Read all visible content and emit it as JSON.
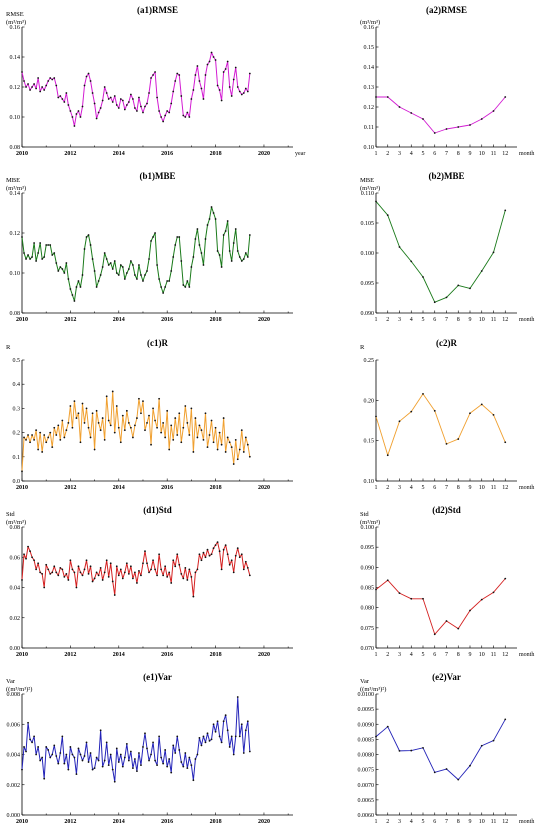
{
  "chart_data": [
    {
      "id": "a1",
      "type": "line",
      "title": "(a1)RMSE",
      "ylabel": "RMSE",
      "yunit": "(m³/m³)",
      "xlabel": "year",
      "xlim": [
        2010,
        2021.2
      ],
      "ylim": [
        0.08,
        0.16
      ],
      "yticks": [
        "0.08",
        "0.10",
        "0.12",
        "0.14",
        "0.16"
      ],
      "xticks": [
        "2010",
        "2012",
        "2014",
        "2016",
        "2018",
        "2020"
      ],
      "color": "#d21bd2",
      "x_start": 2010.0,
      "x_step": 0.08333,
      "values": [
        0.13,
        0.124,
        0.12,
        0.122,
        0.118,
        0.12,
        0.122,
        0.119,
        0.126,
        0.117,
        0.12,
        0.118,
        0.121,
        0.124,
        0.126,
        0.125,
        0.126,
        0.121,
        0.113,
        0.114,
        0.112,
        0.11,
        0.116,
        0.108,
        0.104,
        0.1,
        0.094,
        0.102,
        0.104,
        0.1,
        0.107,
        0.121,
        0.127,
        0.129,
        0.124,
        0.116,
        0.109,
        0.099,
        0.103,
        0.106,
        0.111,
        0.12,
        0.116,
        0.112,
        0.113,
        0.11,
        0.114,
        0.108,
        0.106,
        0.112,
        0.111,
        0.105,
        0.108,
        0.11,
        0.115,
        0.112,
        0.106,
        0.104,
        0.113,
        0.107,
        0.103,
        0.107,
        0.109,
        0.116,
        0.126,
        0.128,
        0.13,
        0.113,
        0.104,
        0.1,
        0.097,
        0.101,
        0.104,
        0.103,
        0.109,
        0.117,
        0.124,
        0.129,
        0.128,
        0.114,
        0.101,
        0.1,
        0.103,
        0.1,
        0.112,
        0.118,
        0.128,
        0.134,
        0.124,
        0.119,
        0.112,
        0.128,
        0.135,
        0.137,
        0.143,
        0.14,
        0.138,
        0.121,
        0.118,
        0.111,
        0.13,
        0.132,
        0.137,
        0.12,
        0.114,
        0.125,
        0.133,
        0.12,
        0.117,
        0.115,
        0.116,
        0.119,
        0.117,
        0.129
      ]
    },
    {
      "id": "a2",
      "type": "line",
      "title": "(a2)RMSE",
      "ylabel": "",
      "yunit": "(m³/m³)",
      "xlabel": "month",
      "xlim": [
        1,
        13
      ],
      "ylim": [
        0.1,
        0.16
      ],
      "yticks": [
        "0.10",
        "0.11",
        "0.12",
        "0.13",
        "0.14",
        "0.15",
        "0.16"
      ],
      "xticks": [
        "1",
        "2",
        "3",
        "4",
        "5",
        "6",
        "7",
        "8",
        "9",
        "10",
        "11",
        "12"
      ],
      "color": "#d21bd2",
      "x": [
        1,
        2,
        3,
        4,
        5,
        6,
        7,
        8,
        9,
        10,
        11,
        12
      ],
      "values": [
        0.125,
        0.125,
        0.12,
        0.117,
        0.114,
        0.107,
        0.109,
        0.11,
        0.111,
        0.114,
        0.118,
        0.125
      ]
    },
    {
      "id": "b1",
      "type": "line",
      "title": "(b1)MBE",
      "ylabel": "MBE",
      "yunit": "(m³/m³)",
      "xlabel": "",
      "xlim": [
        2010,
        2021.2
      ],
      "ylim": [
        0.08,
        0.14
      ],
      "yticks": [
        "0.08",
        "0.10",
        "0.12",
        "0.14"
      ],
      "xticks": [
        "2010",
        "2012",
        "2014",
        "2016",
        "2018",
        "2020"
      ],
      "color": "#1a7a1a",
      "x_start": 2010.0,
      "x_step": 0.08333,
      "values": [
        0.118,
        0.11,
        0.107,
        0.109,
        0.107,
        0.108,
        0.115,
        0.106,
        0.11,
        0.115,
        0.107,
        0.108,
        0.114,
        0.114,
        0.114,
        0.109,
        0.11,
        0.105,
        0.101,
        0.103,
        0.102,
        0.1,
        0.105,
        0.097,
        0.092,
        0.089,
        0.086,
        0.093,
        0.096,
        0.093,
        0.099,
        0.112,
        0.118,
        0.119,
        0.114,
        0.107,
        0.101,
        0.093,
        0.096,
        0.099,
        0.103,
        0.11,
        0.107,
        0.104,
        0.105,
        0.102,
        0.106,
        0.1,
        0.099,
        0.104,
        0.103,
        0.097,
        0.1,
        0.102,
        0.106,
        0.104,
        0.099,
        0.097,
        0.104,
        0.099,
        0.096,
        0.099,
        0.101,
        0.107,
        0.116,
        0.118,
        0.12,
        0.104,
        0.097,
        0.093,
        0.09,
        0.093,
        0.096,
        0.096,
        0.101,
        0.108,
        0.114,
        0.118,
        0.118,
        0.106,
        0.094,
        0.093,
        0.096,
        0.093,
        0.103,
        0.108,
        0.117,
        0.122,
        0.114,
        0.11,
        0.104,
        0.117,
        0.124,
        0.127,
        0.133,
        0.13,
        0.127,
        0.111,
        0.109,
        0.103,
        0.119,
        0.121,
        0.126,
        0.111,
        0.106,
        0.115,
        0.122,
        0.111,
        0.108,
        0.106,
        0.107,
        0.11,
        0.108,
        0.119
      ]
    },
    {
      "id": "b2",
      "type": "line",
      "title": "(b2)MBE",
      "ylabel": "MBE",
      "yunit": "(m³/m³)",
      "xlabel": "month",
      "xlim": [
        1,
        13
      ],
      "ylim": [
        0.09,
        0.11
      ],
      "yticks": [
        "0.090",
        "0.095",
        "0.100",
        "0.105",
        "0.110"
      ],
      "xticks": [
        "1",
        "2",
        "3",
        "4",
        "5",
        "6",
        "7",
        "8",
        "9",
        "10",
        "11",
        "12"
      ],
      "color": "#1a7a1a",
      "x": [
        1,
        2,
        3,
        4,
        5,
        6,
        7,
        8,
        9,
        10,
        11,
        12
      ],
      "values": [
        0.1086,
        0.1063,
        0.101,
        0.0986,
        0.096,
        0.0918,
        0.0926,
        0.0946,
        0.0941,
        0.097,
        0.1001,
        0.1071
      ]
    },
    {
      "id": "c1",
      "type": "line",
      "title": "(c1)R",
      "ylabel": "R",
      "yunit": "",
      "xlabel": "",
      "xlim": [
        2010,
        2021.2
      ],
      "ylim": [
        0.0,
        0.5
      ],
      "yticks": [
        "0.0",
        "0.1",
        "0.2",
        "0.3",
        "0.4",
        "0.5"
      ],
      "xticks": [
        "2010",
        "2012",
        "2014",
        "2016",
        "2018",
        "2020"
      ],
      "color": "#f0a030",
      "x_start": 2010.0,
      "x_step": 0.08333,
      "values": [
        0.04,
        0.18,
        0.17,
        0.19,
        0.16,
        0.19,
        0.17,
        0.21,
        0.13,
        0.2,
        0.12,
        0.19,
        0.16,
        0.18,
        0.2,
        0.14,
        0.22,
        0.19,
        0.23,
        0.17,
        0.25,
        0.18,
        0.21,
        0.24,
        0.31,
        0.22,
        0.33,
        0.26,
        0.28,
        0.16,
        0.32,
        0.24,
        0.3,
        0.22,
        0.18,
        0.28,
        0.13,
        0.29,
        0.24,
        0.21,
        0.26,
        0.17,
        0.35,
        0.25,
        0.23,
        0.37,
        0.2,
        0.31,
        0.22,
        0.16,
        0.27,
        0.21,
        0.29,
        0.24,
        0.22,
        0.18,
        0.23,
        0.26,
        0.34,
        0.28,
        0.33,
        0.21,
        0.24,
        0.27,
        0.15,
        0.3,
        0.25,
        0.22,
        0.34,
        0.2,
        0.24,
        0.18,
        0.29,
        0.13,
        0.23,
        0.17,
        0.26,
        0.19,
        0.28,
        0.16,
        0.22,
        0.31,
        0.24,
        0.19,
        0.3,
        0.12,
        0.26,
        0.18,
        0.23,
        0.21,
        0.17,
        0.28,
        0.14,
        0.19,
        0.25,
        0.16,
        0.22,
        0.13,
        0.2,
        0.15,
        0.26,
        0.12,
        0.18,
        0.16,
        0.14,
        0.07,
        0.17,
        0.09,
        0.13,
        0.21,
        0.12,
        0.18,
        0.15,
        0.1
      ]
    },
    {
      "id": "c2",
      "type": "line",
      "title": "(c2)R",
      "ylabel": "R",
      "yunit": "",
      "xlabel": "month",
      "xlim": [
        1,
        13
      ],
      "ylim": [
        0.1,
        0.25
      ],
      "yticks": [
        "0.10",
        "0.15",
        "0.20",
        "0.25"
      ],
      "xticks": [
        "1",
        "2",
        "3",
        "4",
        "5",
        "6",
        "7",
        "8",
        "9",
        "10",
        "11",
        "12"
      ],
      "color": "#f0a030",
      "x": [
        1,
        2,
        3,
        4,
        5,
        6,
        7,
        8,
        9,
        10,
        11,
        12
      ],
      "values": [
        0.18,
        0.132,
        0.174,
        0.186,
        0.208,
        0.187,
        0.146,
        0.152,
        0.184,
        0.195,
        0.182,
        0.148
      ]
    },
    {
      "id": "d1",
      "type": "line",
      "title": "(d1)Std",
      "ylabel": "Std",
      "yunit": "(m³/m³)",
      "xlabel": "",
      "xlim": [
        2010,
        2021.2
      ],
      "ylim": [
        0.0,
        0.08
      ],
      "yticks": [
        "0.00",
        "0.02",
        "0.04",
        "0.06",
        "0.08"
      ],
      "xticks": [
        "2010",
        "2012",
        "2014",
        "2016",
        "2018",
        "2020"
      ],
      "color": "#d42020",
      "x_start": 2010.0,
      "x_step": 0.08333,
      "values": [
        0.045,
        0.062,
        0.059,
        0.067,
        0.064,
        0.06,
        0.058,
        0.052,
        0.056,
        0.05,
        0.049,
        0.04,
        0.055,
        0.052,
        0.049,
        0.05,
        0.054,
        0.05,
        0.048,
        0.053,
        0.052,
        0.047,
        0.049,
        0.045,
        0.058,
        0.052,
        0.05,
        0.04,
        0.054,
        0.05,
        0.048,
        0.052,
        0.058,
        0.049,
        0.054,
        0.044,
        0.046,
        0.05,
        0.048,
        0.053,
        0.045,
        0.05,
        0.058,
        0.047,
        0.056,
        0.044,
        0.035,
        0.054,
        0.048,
        0.052,
        0.046,
        0.05,
        0.056,
        0.049,
        0.054,
        0.046,
        0.05,
        0.043,
        0.051,
        0.048,
        0.056,
        0.064,
        0.056,
        0.05,
        0.052,
        0.058,
        0.052,
        0.048,
        0.062,
        0.052,
        0.048,
        0.054,
        0.047,
        0.05,
        0.043,
        0.058,
        0.054,
        0.062,
        0.055,
        0.049,
        0.046,
        0.053,
        0.045,
        0.052,
        0.047,
        0.034,
        0.05,
        0.052,
        0.062,
        0.058,
        0.063,
        0.06,
        0.065,
        0.061,
        0.062,
        0.066,
        0.068,
        0.07,
        0.064,
        0.052,
        0.065,
        0.068,
        0.062,
        0.055,
        0.058,
        0.05,
        0.061,
        0.066,
        0.06,
        0.062,
        0.052,
        0.057,
        0.053,
        0.048
      ]
    },
    {
      "id": "d2",
      "type": "line",
      "title": "(d2)Std",
      "ylabel": "Std",
      "yunit": "(m³/m³)",
      "xlabel": "month",
      "xlim": [
        1,
        13
      ],
      "ylim": [
        0.07,
        0.1
      ],
      "yticks": [
        "0.070",
        "0.075",
        "0.080",
        "0.085",
        "0.090",
        "0.095",
        "0.100"
      ],
      "xticks": [
        "1",
        "2",
        "3",
        "4",
        "5",
        "6",
        "7",
        "8",
        "9",
        "10",
        "11",
        "12"
      ],
      "color": "#d42020",
      "x": [
        1,
        2,
        3,
        4,
        5,
        6,
        7,
        8,
        9,
        10,
        11,
        12
      ],
      "values": [
        0.0845,
        0.0868,
        0.0836,
        0.0822,
        0.0822,
        0.0734,
        0.0767,
        0.0748,
        0.0793,
        0.082,
        0.0838,
        0.0872
      ]
    },
    {
      "id": "e1",
      "type": "line",
      "title": "(e1)Var",
      "ylabel": "Var",
      "yunit": "((m³/m³)²)",
      "xlabel": "",
      "xlim": [
        2010,
        2021.2
      ],
      "ylim": [
        0.0,
        0.008
      ],
      "yticks": [
        "0.000",
        "0.002",
        "0.004",
        "0.006",
        "0.008"
      ],
      "xticks": [
        "2010",
        "2012",
        "2014",
        "2016",
        "2018",
        "2020"
      ],
      "color": "#2323b8",
      "x_start": 2010.0,
      "x_step": 0.08333,
      "values": [
        0.003,
        0.0045,
        0.0042,
        0.0061,
        0.005,
        0.0048,
        0.0052,
        0.004,
        0.0045,
        0.0036,
        0.0038,
        0.0024,
        0.0045,
        0.0043,
        0.0038,
        0.004,
        0.0046,
        0.0039,
        0.0034,
        0.0041,
        0.0052,
        0.0034,
        0.004,
        0.003,
        0.0045,
        0.004,
        0.0038,
        0.0027,
        0.0044,
        0.004,
        0.0036,
        0.0039,
        0.0048,
        0.0035,
        0.0041,
        0.003,
        0.0031,
        0.0038,
        0.0036,
        0.0056,
        0.0032,
        0.0036,
        0.0048,
        0.0033,
        0.004,
        0.003,
        0.0022,
        0.0044,
        0.0035,
        0.004,
        0.0032,
        0.0038,
        0.0047,
        0.0036,
        0.0042,
        0.0031,
        0.0037,
        0.0029,
        0.0041,
        0.0033,
        0.0045,
        0.0054,
        0.0044,
        0.0036,
        0.004,
        0.0048,
        0.0036,
        0.0033,
        0.0052,
        0.0038,
        0.0034,
        0.0043,
        0.0032,
        0.0037,
        0.0028,
        0.0046,
        0.0041,
        0.0052,
        0.0043,
        0.0035,
        0.0032,
        0.0041,
        0.0031,
        0.0038,
        0.0033,
        0.0023,
        0.0037,
        0.004,
        0.0051,
        0.0046,
        0.0052,
        0.0048,
        0.0054,
        0.0049,
        0.005,
        0.006,
        0.0055,
        0.0062,
        0.0052,
        0.0048,
        0.0062,
        0.0066,
        0.0056,
        0.0045,
        0.0052,
        0.004,
        0.0052,
        0.0078,
        0.0052,
        0.006,
        0.0041,
        0.0056,
        0.0062,
        0.0042
      ]
    },
    {
      "id": "e2",
      "type": "line",
      "title": "(e2)Var",
      "ylabel": "Var",
      "yunit": "((m³/m³)²)",
      "xlabel": "month",
      "xlim": [
        1,
        13
      ],
      "ylim": [
        0.006,
        0.01
      ],
      "yticks": [
        "0.0060",
        "0.0065",
        "0.0070",
        "0.0075",
        "0.0080",
        "0.0085",
        "0.0090",
        "0.0095",
        "0.0100"
      ],
      "xticks": [
        "1",
        "2",
        "3",
        "4",
        "5",
        "6",
        "7",
        "8",
        "9",
        "10",
        "11",
        "12"
      ],
      "color": "#2323b8",
      "x": [
        1,
        2,
        3,
        4,
        5,
        6,
        7,
        8,
        9,
        10,
        11,
        12
      ],
      "values": [
        0.00859,
        0.00892,
        0.00812,
        0.00813,
        0.00822,
        0.00741,
        0.00752,
        0.00717,
        0.00763,
        0.00829,
        0.00846,
        0.00916
      ]
    }
  ]
}
